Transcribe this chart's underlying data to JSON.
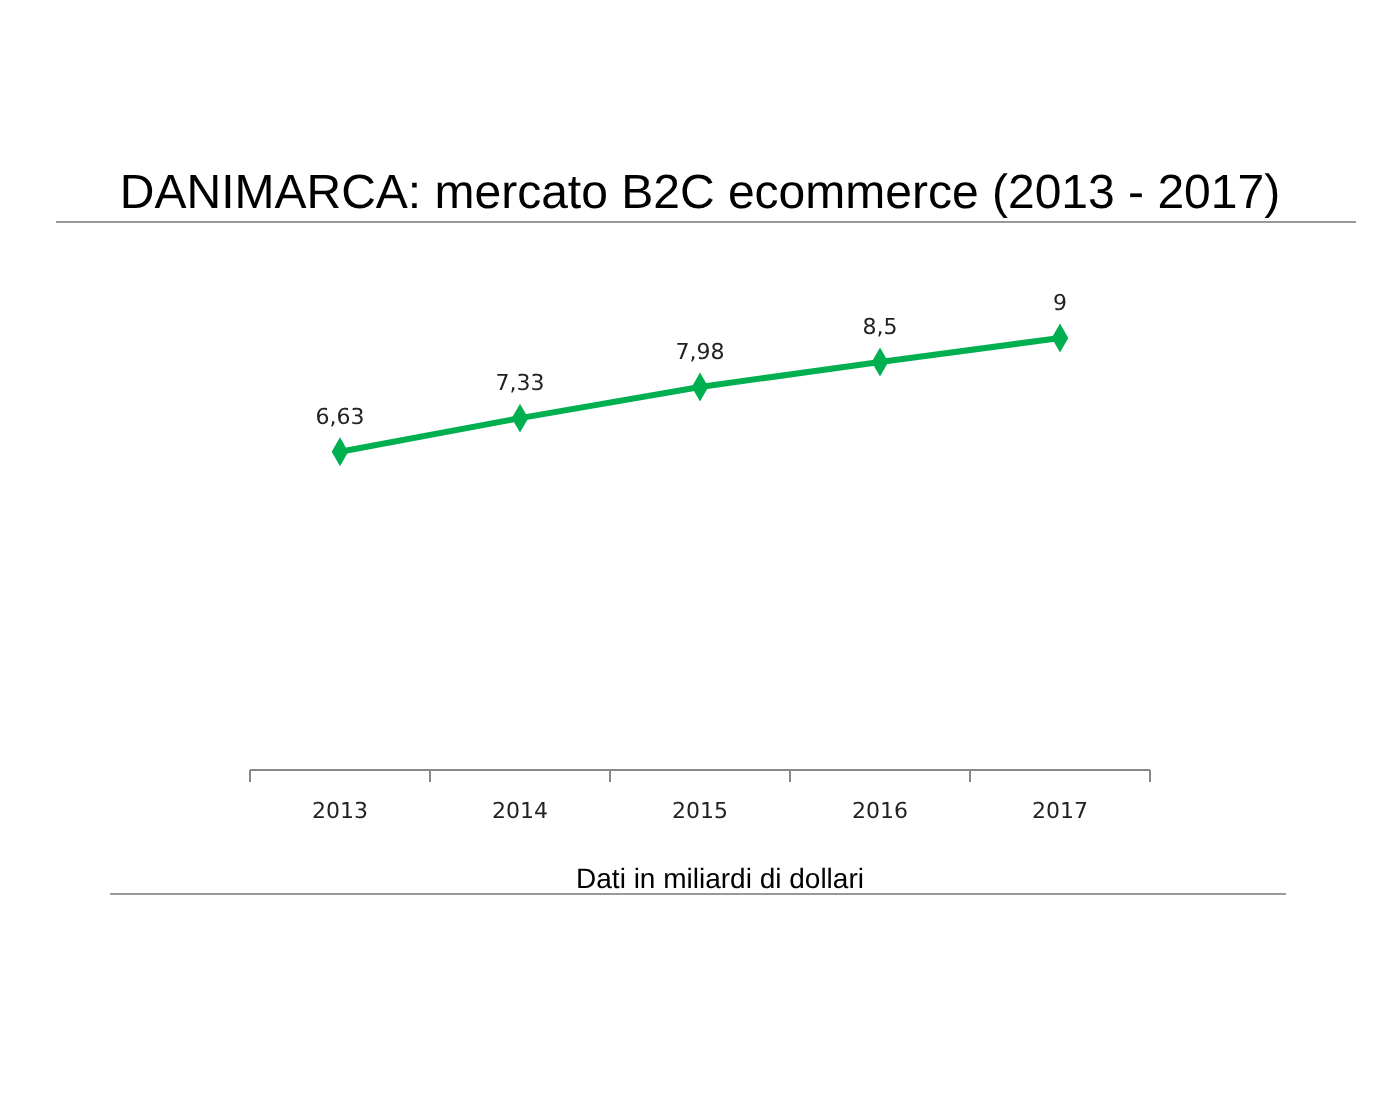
{
  "chart_data": {
    "type": "line",
    "title": "DANIMARCA: mercato B2C ecommerce (2013 - 2017)",
    "xlabel": "Dati in miliardi di dollari",
    "categories": [
      "2013",
      "2014",
      "2015",
      "2016",
      "2017"
    ],
    "series": [
      {
        "color": "#00b050",
        "values": [
          6.63,
          7.33,
          7.98,
          8.5,
          9
        ],
        "value_labels": [
          "6,63",
          "7,33",
          "7,98",
          "8,5",
          "9"
        ]
      }
    ],
    "tick_labels": "x",
    "marker": "diamond"
  }
}
